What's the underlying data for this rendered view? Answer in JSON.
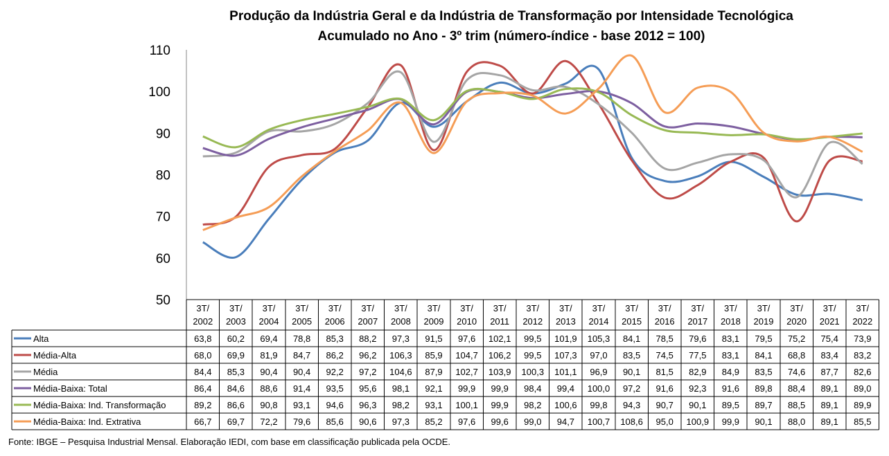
{
  "chart_data": {
    "type": "line",
    "title": "Produção da Indústria Geral e da Indústria de Transformação por Intensidade Tecnológica",
    "subtitle": "Acumulado no Ano - 3º trim (número-índice - base 2012 = 100)",
    "ylim": [
      50,
      110
    ],
    "yticks": [
      "110",
      "100",
      "90",
      "80",
      "70",
      "60",
      "50"
    ],
    "grid": false,
    "legend_placement": "data-table",
    "categories": [
      [
        "3T/",
        "2002"
      ],
      [
        "3T/",
        "2003"
      ],
      [
        "3T/",
        "2004"
      ],
      [
        "3T/",
        "2005"
      ],
      [
        "3T/",
        "2006"
      ],
      [
        "3T/",
        "2007"
      ],
      [
        "3T/",
        "2008"
      ],
      [
        "3T/",
        "2009"
      ],
      [
        "3T/",
        "2010"
      ],
      [
        "3T/",
        "2011"
      ],
      [
        "3T/",
        "2012"
      ],
      [
        "3T/",
        "2013"
      ],
      [
        "3T/",
        "2014"
      ],
      [
        "3T/",
        "2015"
      ],
      [
        "3T/",
        "2016"
      ],
      [
        "3T/",
        "2017"
      ],
      [
        "3T/",
        "2018"
      ],
      [
        "3T/",
        "2019"
      ],
      [
        "3T/",
        "2020"
      ],
      [
        "3T/",
        "2021"
      ],
      [
        "3T/",
        "2022"
      ]
    ],
    "series": [
      {
        "name": "Alta",
        "color": "#4a7ebb",
        "values": [
          63.8,
          60.2,
          69.4,
          78.8,
          85.3,
          88.2,
          97.3,
          91.5,
          97.6,
          102.1,
          99.5,
          101.9,
          105.3,
          84.1,
          78.5,
          79.6,
          83.1,
          79.5,
          75.2,
          75.4,
          73.9
        ],
        "labels": [
          "63,8",
          "60,2",
          "69,4",
          "78,8",
          "85,3",
          "88,2",
          "97,3",
          "91,5",
          "97,6",
          "102,1",
          "99,5",
          "101,9",
          "105,3",
          "84,1",
          "78,5",
          "79,6",
          "83,1",
          "79,5",
          "75,2",
          "75,4",
          "73,9"
        ]
      },
      {
        "name": "Média-Alta",
        "color": "#be4b48",
        "values": [
          68.0,
          69.9,
          81.9,
          84.7,
          86.2,
          96.2,
          106.3,
          85.9,
          104.7,
          106.2,
          99.5,
          107.3,
          97.0,
          83.5,
          74.5,
          77.5,
          83.1,
          84.1,
          68.8,
          83.4,
          83.2
        ],
        "labels": [
          "68,0",
          "69,9",
          "81,9",
          "84,7",
          "86,2",
          "96,2",
          "106,3",
          "85,9",
          "104,7",
          "106,2",
          "99,5",
          "107,3",
          "97,0",
          "83,5",
          "74,5",
          "77,5",
          "83,1",
          "84,1",
          "68,8",
          "83,4",
          "83,2"
        ]
      },
      {
        "name": "Média",
        "color": "#a5a5a5",
        "values": [
          84.4,
          85.3,
          90.4,
          90.4,
          92.2,
          97.2,
          104.6,
          87.9,
          102.7,
          103.9,
          100.3,
          101.1,
          96.9,
          90.1,
          81.5,
          82.9,
          84.9,
          83.5,
          74.6,
          87.7,
          82.6
        ],
        "labels": [
          "84,4",
          "85,3",
          "90,4",
          "90,4",
          "92,2",
          "97,2",
          "104,6",
          "87,9",
          "102,7",
          "103,9",
          "100,3",
          "101,1",
          "96,9",
          "90,1",
          "81,5",
          "82,9",
          "84,9",
          "83,5",
          "74,6",
          "87,7",
          "82,6"
        ]
      },
      {
        "name": "Média-Baixa: Total",
        "color": "#7d5fa0",
        "values": [
          86.4,
          84.6,
          88.6,
          91.4,
          93.5,
          95.6,
          98.1,
          92.1,
          99.9,
          99.9,
          98.4,
          99.4,
          100.0,
          97.2,
          91.6,
          92.3,
          91.6,
          89.8,
          88.4,
          89.1,
          89.0
        ],
        "labels": [
          "86,4",
          "84,6",
          "88,6",
          "91,4",
          "93,5",
          "95,6",
          "98,1",
          "92,1",
          "99,9",
          "99,9",
          "98,4",
          "99,4",
          "100,0",
          "97,2",
          "91,6",
          "92,3",
          "91,6",
          "89,8",
          "88,4",
          "89,1",
          "89,0"
        ]
      },
      {
        "name": "Média-Baixa: Ind. Transformação",
        "color": "#98b954",
        "values": [
          89.2,
          86.6,
          90.8,
          93.1,
          94.6,
          96.3,
          98.2,
          93.1,
          100.1,
          99.9,
          98.2,
          100.6,
          99.8,
          94.3,
          90.7,
          90.1,
          89.5,
          89.7,
          88.5,
          89.1,
          89.9
        ],
        "labels": [
          "89,2",
          "86,6",
          "90,8",
          "93,1",
          "94,6",
          "96,3",
          "98,2",
          "93,1",
          "100,1",
          "99,9",
          "98,2",
          "100,6",
          "99,8",
          "94,3",
          "90,7",
          "90,1",
          "89,5",
          "89,7",
          "88,5",
          "89,1",
          "89,9"
        ]
      },
      {
        "name": "Média-Baixa: Ind. Extrativa",
        "color": "#f59d56",
        "values": [
          66.7,
          69.7,
          72.2,
          79.6,
          85.6,
          90.6,
          97.3,
          85.2,
          97.6,
          99.6,
          99.0,
          94.7,
          100.7,
          108.6,
          95.0,
          100.9,
          99.9,
          90.1,
          88.0,
          89.1,
          85.5
        ],
        "labels": [
          "66,7",
          "69,7",
          "72,2",
          "79,6",
          "85,6",
          "90,6",
          "97,3",
          "85,2",
          "97,6",
          "99,6",
          "99,0",
          "94,7",
          "100,7",
          "108,6",
          "95,0",
          "100,9",
          "99,9",
          "90,1",
          "88,0",
          "89,1",
          "85,5"
        ]
      }
    ]
  },
  "source": "Fonte: IBGE – Pesquisa Industrial Mensal. Elaboração IEDI, com base em classificação publicada pela OCDE."
}
